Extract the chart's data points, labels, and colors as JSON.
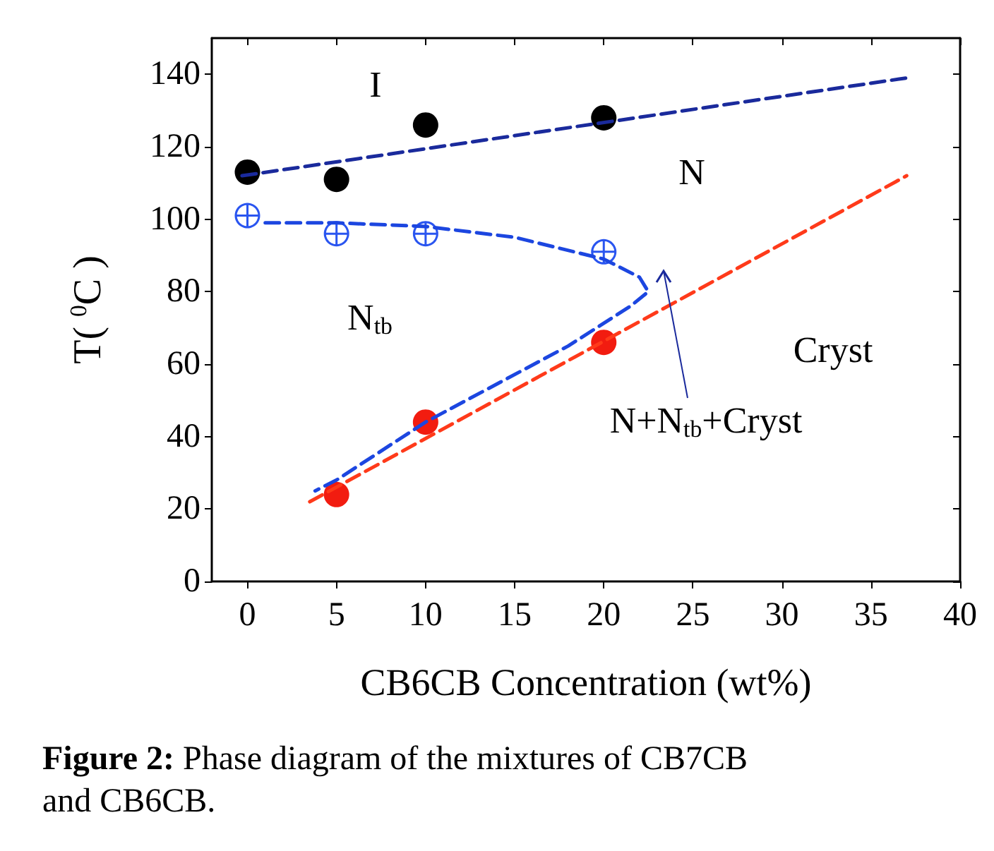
{
  "chart_data": {
    "type": "scatter",
    "xlabel": "CB6CB Concentration (wt%)",
    "ylabel": "T( $^{0}$C )",
    "xlim": [
      -2,
      40
    ],
    "xticks": [
      0,
      5,
      10,
      15,
      20,
      25,
      30,
      35,
      40
    ],
    "ylim": [
      0,
      150
    ],
    "yticks": [
      0,
      20,
      40,
      60,
      80,
      100,
      120,
      140
    ],
    "grid": false,
    "series": [
      {
        "color": "#000000",
        "marker": "circle",
        "x": [
          0,
          5,
          10,
          20
        ],
        "values": [
          113,
          111,
          126,
          128
        ]
      },
      {
        "color": "#2a55f0",
        "marker": "cross",
        "x": [
          0,
          5,
          10,
          20
        ],
        "values": [
          101,
          96,
          96,
          91
        ]
      },
      {
        "color": "#f21c10",
        "marker": "circle",
        "x": [
          5,
          10,
          20
        ],
        "values": [
          24,
          44,
          66
        ]
      },
      {
        "type": "line",
        "color": "#1a2a9c",
        "marker": "none",
        "line_style": "dashed",
        "x": [
          -0.3,
          37
        ],
        "values": [
          112,
          139
        ]
      },
      {
        "type": "line",
        "color": "#ff3a1a",
        "marker": "none",
        "line_style": "dashed",
        "x": [
          3.5,
          37
        ],
        "values": [
          22,
          112
        ]
      },
      {
        "type": "line",
        "color": "#1c46e0",
        "marker": "none",
        "line_style": "dashed",
        "x": [
          1,
          5,
          10,
          15,
          20,
          22,
          22.5,
          21.5,
          18,
          10,
          5,
          3.8
        ],
        "values": [
          99,
          99,
          98,
          95,
          89,
          84,
          80,
          76,
          65,
          44,
          28,
          25
        ]
      }
    ],
    "annotations": [
      "I",
      "N",
      "N$_{tb}$",
      "Cryst",
      "N+N$_{tb}$+Cryst",
      "Figure 2: Phase diagram of the mixtures of CB7CB and CB6CB."
    ]
  }
}
